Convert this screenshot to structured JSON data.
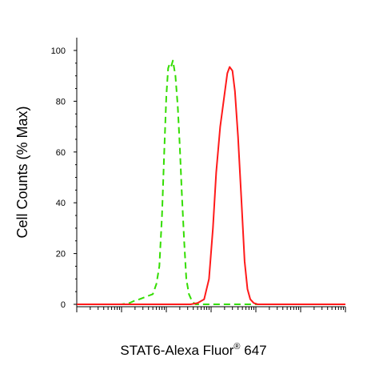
{
  "chart_data": {
    "type": "line",
    "title": "",
    "xlabel": {
      "main": "STAT6-Alexa Fluor",
      "superscript": "®",
      "suffix": " 647"
    },
    "ylabel": "Cell Counts (% Max)",
    "x_scale": "log",
    "xlim": [
      10,
      10000000
    ],
    "ylim": [
      0,
      100
    ],
    "y_ticks": [
      0,
      20,
      40,
      60,
      80,
      100
    ],
    "y_tick_labels": [
      "0",
      "20",
      "40",
      "60",
      "80",
      "100"
    ],
    "grid": false,
    "series": [
      {
        "color": "#33dd00",
        "style": "dashed",
        "x": [
          10,
          100,
          150,
          200,
          250,
          350,
          500,
          600,
          700,
          800,
          900,
          1000,
          1100,
          1200,
          1300,
          1400,
          1600,
          1800,
          2000,
          2200,
          2500,
          2800,
          3200,
          3800,
          4500,
          6000,
          10000,
          20000,
          40000,
          1000000,
          10000000
        ],
        "y": [
          0,
          0,
          0.5,
          1.5,
          2,
          3,
          4,
          8,
          15,
          35,
          60,
          82,
          93,
          95,
          94,
          96,
          90,
          78,
          62,
          45,
          25,
          10,
          4,
          1,
          0,
          0,
          0,
          0,
          0,
          0,
          0
        ]
      },
      {
        "color": "#ff1a1a",
        "style": "solid",
        "x": [
          10,
          3500,
          5000,
          7000,
          9000,
          11000,
          13000,
          16000,
          20000,
          23000,
          26000,
          30000,
          34000,
          40000,
          48000,
          56000,
          65000,
          75000,
          90000,
          110000,
          150000,
          10000000
        ],
        "y": [
          0,
          0,
          0.5,
          2,
          10,
          30,
          52,
          70,
          83,
          91,
          93.5,
          92,
          84,
          66,
          40,
          17,
          6,
          2,
          0.5,
          0,
          0,
          0
        ]
      }
    ]
  }
}
